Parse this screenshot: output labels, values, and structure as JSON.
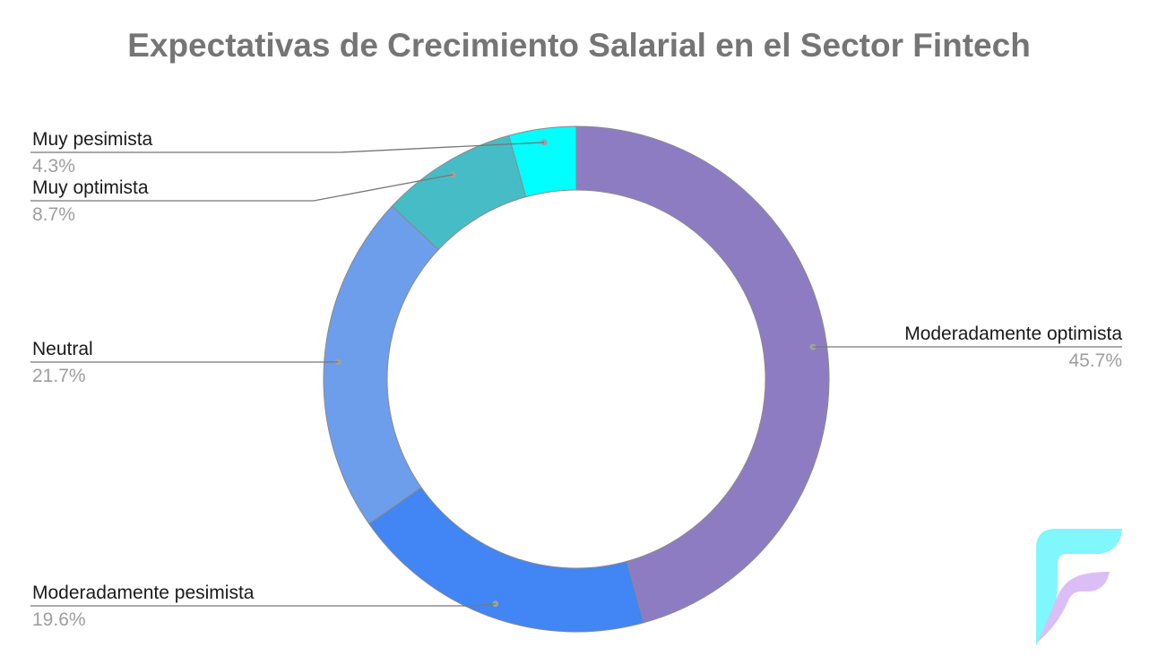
{
  "chart_data": {
    "type": "pie",
    "donut": true,
    "title": "Expectativas de Crecimiento Salarial en el Sector Fintech",
    "slices": [
      {
        "label": "Moderadamente optimista",
        "value": 45.7,
        "value_label": "45.7%",
        "color": "#8e7cc3"
      },
      {
        "label": "Moderadamente pesimista",
        "value": 19.6,
        "value_label": "19.6%",
        "color": "#4285f4"
      },
      {
        "label": "Neutral",
        "value": 21.7,
        "value_label": "21.7%",
        "color": "#6d9eeb"
      },
      {
        "label": "Muy optimista",
        "value": 8.7,
        "value_label": "8.7%",
        "color": "#46bdc6"
      },
      {
        "label": "Muy pesimista",
        "value": 4.3,
        "value_label": "4.3%",
        "color": "#00ffff"
      }
    ],
    "start_angle_deg": 0,
    "direction": "clockwise",
    "legend": "callout labels"
  },
  "logo": {
    "name": "F-logo",
    "colors": [
      "#7ff7fd",
      "#dcbef7"
    ]
  }
}
